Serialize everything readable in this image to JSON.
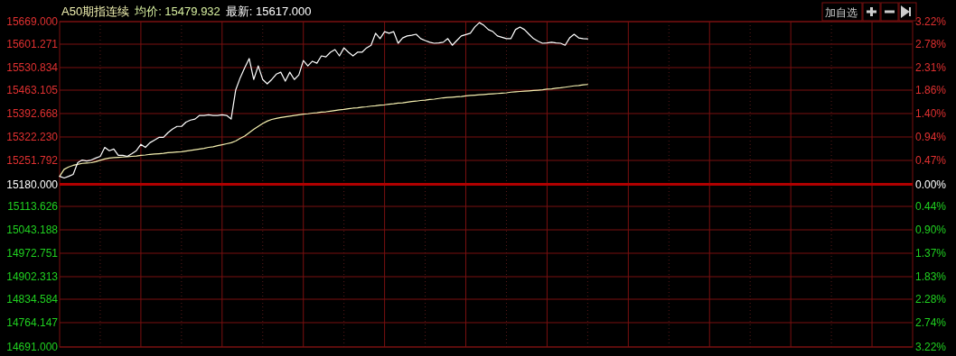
{
  "chart_data": {
    "type": "line",
    "title": "A50期指连续",
    "annotations": [
      "均价: 15479.932",
      "最新: 15617.000",
      "加自选"
    ],
    "categories": [
      null,
      null,
      null,
      null,
      null,
      null,
      null,
      null,
      null,
      null,
      null,
      null,
      null,
      null,
      null,
      null,
      null,
      null,
      null,
      null,
      null,
      null,
      null,
      null,
      null,
      null,
      null,
      null,
      null,
      null,
      null,
      null,
      null,
      null,
      null,
      null,
      null,
      null,
      null,
      null,
      null,
      null,
      null,
      null,
      null,
      null,
      null,
      null,
      null,
      null,
      null,
      null,
      null,
      null,
      null,
      null,
      null,
      null,
      null,
      null,
      null,
      null,
      null,
      null,
      null,
      null,
      null,
      null,
      null,
      null,
      null,
      null,
      null,
      null,
      null,
      null,
      null,
      null,
      null,
      null,
      null,
      null,
      null,
      null,
      null,
      null,
      null,
      null,
      null,
      null,
      null,
      null,
      null,
      null,
      null,
      null,
      null,
      null,
      null,
      null,
      null,
      null,
      null,
      null,
      null,
      null,
      null,
      null,
      null,
      null,
      null,
      null,
      null,
      null,
      null,
      null,
      null,
      null,
      null,
      null,
      null,
      null,
      null,
      null,
      null,
      null,
      null,
      null,
      null,
      null,
      null,
      null,
      null,
      null,
      null,
      null,
      null,
      null,
      null,
      null,
      null,
      null,
      null,
      null,
      null,
      null,
      null,
      null,
      null,
      null,
      null,
      null,
      null,
      null,
      null,
      null,
      null,
      null,
      null,
      null,
      null,
      null,
      null,
      null,
      null,
      null,
      null,
      null,
      null,
      null,
      null,
      null,
      null,
      null,
      null,
      null,
      null,
      null,
      null,
      null,
      null,
      null,
      null,
      null,
      null,
      null,
      null,
      null,
      null,
      null
    ],
    "series": [
      {
        "color": "#ffffff",
        "values": [
          15204,
          15199,
          15204,
          15210,
          15245,
          15253,
          15250,
          15253,
          15259,
          15264,
          15291,
          15281,
          15286,
          15267,
          15267,
          15264,
          15272,
          15281,
          15300,
          15291,
          15305,
          15313,
          15321,
          15321,
          15335,
          15346,
          15354,
          15354,
          15367,
          15373,
          15376,
          15387,
          15387,
          15389,
          15387,
          15387,
          15389,
          15387,
          15376,
          15463,
          15500,
          15530,
          15558,
          15495,
          15536,
          15495,
          15482,
          15495,
          15511,
          15517,
          15490,
          15517,
          15495,
          15509,
          15552,
          15536,
          15550,
          15544,
          15566,
          15563,
          15577,
          15585,
          15566,
          15590,
          15577,
          15566,
          15577,
          15577,
          15590,
          15598,
          15634,
          15618,
          15639,
          15634,
          15639,
          15604,
          15620,
          15626,
          15628,
          15631,
          15618,
          15612,
          15607,
          15604,
          15605,
          15607,
          15618,
          15598,
          15612,
          15626,
          15630,
          15634,
          15653,
          15666,
          15658,
          15645,
          15639,
          15626,
          15622,
          15618,
          15618,
          15645,
          15653,
          15645,
          15631,
          15618,
          15610,
          15604,
          15605,
          15607,
          15605,
          15604,
          15598,
          15620,
          15631,
          15620,
          15618,
          15617,
          null,
          null,
          null,
          null,
          null,
          null,
          null,
          null,
          null,
          null,
          null,
          null,
          null,
          null,
          null,
          null,
          null,
          null,
          null,
          null,
          null,
          null,
          null,
          null,
          null,
          null,
          null,
          null,
          null,
          null,
          null,
          null,
          null,
          null,
          null,
          null,
          null,
          null,
          null,
          null,
          null,
          null,
          null,
          null,
          null,
          null,
          null,
          null,
          null,
          null,
          null,
          null,
          null,
          null,
          null,
          null,
          null,
          null,
          null,
          null,
          null,
          null,
          null,
          null,
          null,
          null,
          null,
          null,
          null,
          null,
          null,
          null
        ]
      },
      {
        "color": "#f5f0b0",
        "values": [
          15204,
          15225,
          15232,
          15237,
          15240,
          15243,
          15244,
          15245,
          15248,
          15252,
          15256,
          15259,
          15260,
          15261,
          15262,
          15263,
          15264,
          15265,
          15267,
          15268,
          15270,
          15271,
          15272,
          15273,
          15275,
          15276,
          15277,
          15278,
          15280,
          15282,
          15284,
          15286,
          15288,
          15291,
          15293,
          15296,
          15299,
          15302,
          15305,
          15310,
          15318,
          15325,
          15335,
          15345,
          15354,
          15363,
          15370,
          15375,
          15378,
          15381,
          15383,
          15385,
          15387,
          15389,
          15391,
          15392,
          15394,
          15395,
          15397,
          15398,
          15400,
          15402,
          15404,
          15405,
          15407,
          15409,
          15410,
          15412,
          15413,
          15415,
          15416,
          15418,
          15419,
          15421,
          15422,
          15424,
          15425,
          15427,
          15429,
          15430,
          15432,
          15433,
          15435,
          15436,
          15438,
          15440,
          15441,
          15442,
          15443,
          15444,
          15446,
          15447,
          15448,
          15449,
          15450,
          15451,
          15452,
          15453,
          15454,
          15455,
          15457,
          15458,
          15459,
          15460,
          15461,
          15462,
          15463,
          15464,
          15466,
          15467,
          15469,
          15470,
          15472,
          15474,
          15476,
          15477,
          15479,
          15480,
          null,
          null,
          null,
          null,
          null,
          null,
          null,
          null,
          null,
          null,
          null,
          null,
          null,
          null,
          null,
          null,
          null,
          null,
          null,
          null,
          null,
          null,
          null,
          null,
          null,
          null,
          null,
          null,
          null,
          null,
          null,
          null,
          null,
          null,
          null,
          null,
          null,
          null,
          null,
          null,
          null,
          null,
          null,
          null,
          null,
          null,
          null,
          null,
          null,
          null,
          null,
          null,
          null,
          null,
          null,
          null,
          null,
          null,
          null,
          null,
          null,
          null,
          null,
          null,
          null,
          null,
          null,
          null,
          null,
          null,
          null,
          null
        ]
      }
    ],
    "ylim": [
      14691,
      15669
    ],
    "yticks": [
      {
        "value": 15669,
        "label": "15669.000"
      },
      15601.271,
      15530.834,
      15463.105,
      15392.668,
      {
        "value": 15322.23,
        "label": "15322.230"
      },
      15251.792,
      {
        "value": 15180,
        "label": "15180.000"
      },
      15113.626,
      15043.188,
      14972.751,
      14902.313,
      14834.584,
      14764.147,
      {
        "value": 14691,
        "label": "14691.000"
      }
    ],
    "y2lim": [
      -3.22,
      3.22
    ],
    "y2ticks": [
      {
        "value": 3.22,
        "label": "3.22%"
      },
      {
        "value": 2.78,
        "label": "2.78%"
      },
      {
        "value": 2.31,
        "label": "2.31%"
      },
      {
        "value": 1.86,
        "label": "1.86%"
      },
      {
        "value": 1.4,
        "label": "1.40%"
      },
      {
        "value": 0.94,
        "label": "0.94%"
      },
      {
        "value": 0.47,
        "label": "0.47%"
      },
      {
        "value": 0,
        "label": "0.00%"
      },
      {
        "value": -0.44,
        "label": "0.44%"
      },
      {
        "value": -0.9,
        "label": "0.90%"
      },
      {
        "value": -1.37,
        "label": "1.37%"
      },
      {
        "value": -1.83,
        "label": "1.83%"
      },
      {
        "value": -2.28,
        "label": "2.28%"
      },
      {
        "value": -2.74,
        "label": "2.74%"
      },
      {
        "value": -3.22,
        "label": "3.22%"
      }
    ],
    "ref_lines": [
      {
        "axis": "y",
        "value": 15180,
        "color": "#b00000"
      }
    ],
    "grid": true
  }
}
